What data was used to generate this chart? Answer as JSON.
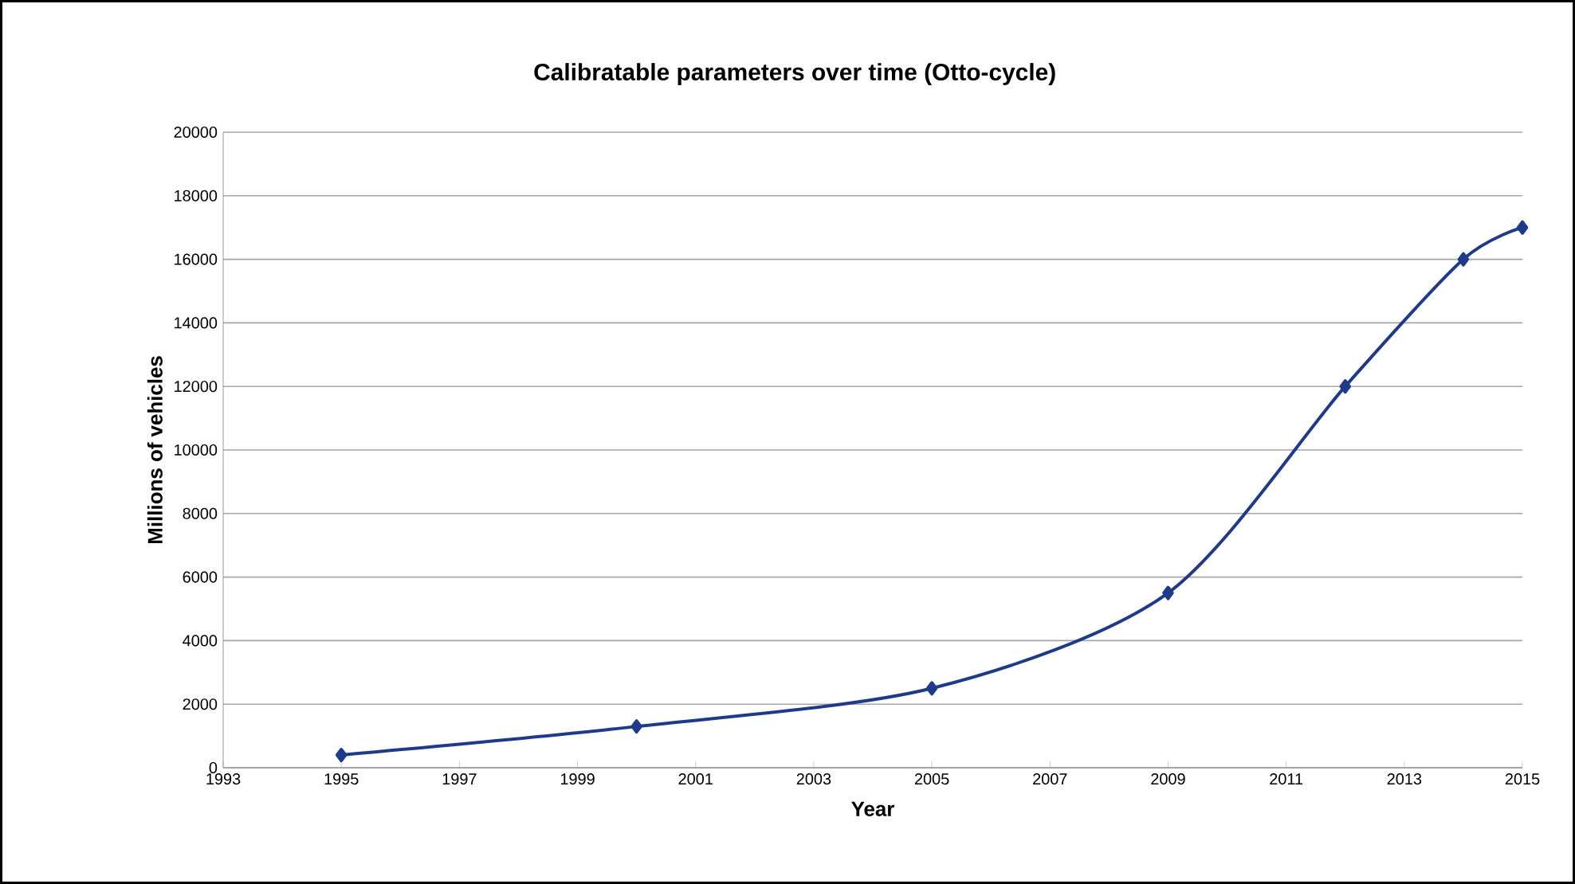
{
  "chart_data": {
    "type": "line",
    "title": "Calibratable parameters over time (Otto-cycle)",
    "xlabel": "Year",
    "ylabel": "Millions of vehicles",
    "x": [
      1995,
      2000,
      2005,
      2009,
      2012,
      2014,
      2015
    ],
    "series": [
      {
        "color": "#1f3a8a",
        "values": [
          400,
          1300,
          2500,
          5500,
          12000,
          16000,
          17000
        ]
      }
    ],
    "xlim": [
      1993,
      2015
    ],
    "xticks": [
      1993,
      1995,
      1997,
      1999,
      2001,
      2003,
      2005,
      2007,
      2009,
      2011,
      2013,
      2015
    ],
    "ylim": [
      0,
      20000
    ],
    "yticks": [
      0,
      2000,
      4000,
      6000,
      8000,
      10000,
      12000,
      14000,
      16000,
      18000,
      20000
    ],
    "grid": "y",
    "marker": "diamond",
    "line_style": "solid"
  }
}
